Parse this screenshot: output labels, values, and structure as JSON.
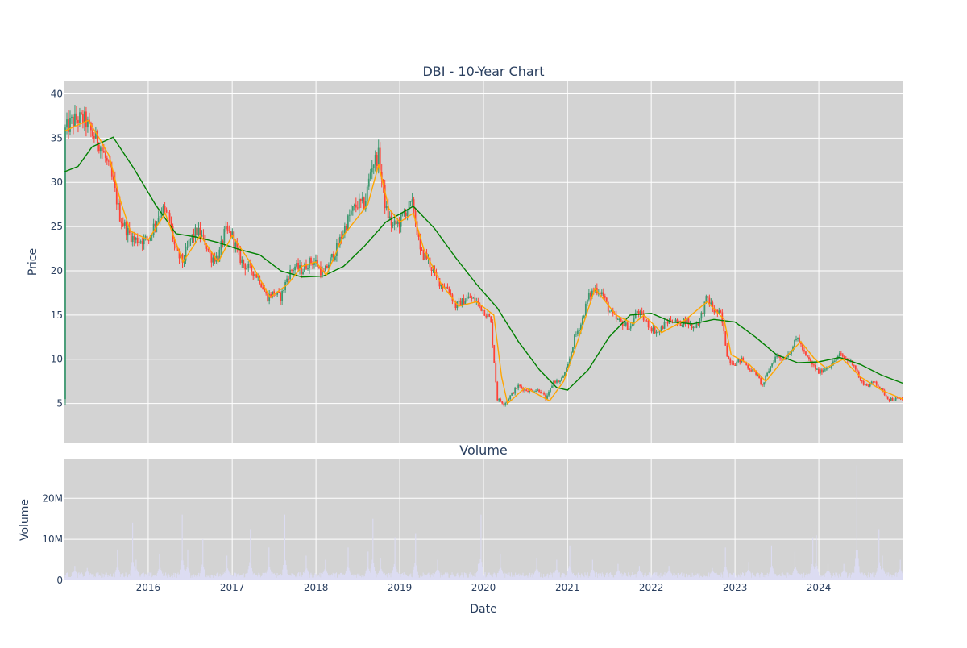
{
  "chart_data": [
    {
      "type": "candlestick",
      "title": "DBI - 10-Year Chart",
      "ylabel": "Price",
      "xlabel": "",
      "x_range": [
        "2015-01-01",
        "2024-12-31"
      ],
      "ylim": [
        0.5,
        41.5
      ],
      "y_ticks": [
        5,
        10,
        15,
        20,
        25,
        30,
        35,
        40
      ],
      "grid": true,
      "legend": "none",
      "colors": {
        "increasing": "#3d9970",
        "decreasing": "#ff4136",
        "plot_bg": "#d3d3d3",
        "grid": "#ffffff"
      },
      "price_path": [
        [
          "2015-01-02",
          35.8
        ],
        [
          "2015-02-01",
          36.8
        ],
        [
          "2015-03-01",
          37.2
        ],
        [
          "2015-04-01",
          37.0
        ],
        [
          "2015-05-01",
          35.5
        ],
        [
          "2015-06-01",
          34.5
        ],
        [
          "2015-07-01",
          32.5
        ],
        [
          "2015-08-01",
          30.0
        ],
        [
          "2015-09-01",
          26.0
        ],
        [
          "2015-10-01",
          24.5
        ],
        [
          "2015-11-01",
          23.5
        ],
        [
          "2015-12-01",
          23.5
        ],
        [
          "2016-01-01",
          23.5
        ],
        [
          "2016-02-01",
          25.5
        ],
        [
          "2016-03-01",
          27.0
        ],
        [
          "2016-04-01",
          26.0
        ],
        [
          "2016-05-01",
          22.0
        ],
        [
          "2016-06-01",
          21.0
        ],
        [
          "2016-07-01",
          23.5
        ],
        [
          "2016-08-01",
          24.5
        ],
        [
          "2016-09-01",
          23.5
        ],
        [
          "2016-10-01",
          21.5
        ],
        [
          "2016-11-01",
          21.5
        ],
        [
          "2016-12-01",
          24.5
        ],
        [
          "2017-01-01",
          24.0
        ],
        [
          "2017-02-01",
          21.5
        ],
        [
          "2017-03-01",
          20.5
        ],
        [
          "2017-04-01",
          20.0
        ],
        [
          "2017-05-01",
          19.0
        ],
        [
          "2017-06-01",
          17.0
        ],
        [
          "2017-07-01",
          17.5
        ],
        [
          "2017-08-01",
          17.0
        ],
        [
          "2017-09-01",
          19.5
        ],
        [
          "2017-10-01",
          20.5
        ],
        [
          "2017-11-01",
          20.0
        ],
        [
          "2017-12-01",
          21.0
        ],
        [
          "2018-01-01",
          21.0
        ],
        [
          "2018-02-01",
          19.5
        ],
        [
          "2018-03-01",
          21.0
        ],
        [
          "2018-04-01",
          22.5
        ],
        [
          "2018-05-01",
          24.5
        ],
        [
          "2018-06-01",
          26.5
        ],
        [
          "2018-07-01",
          27.5
        ],
        [
          "2018-08-01",
          27.5
        ],
        [
          "2018-09-01",
          32.0
        ],
        [
          "2018-10-01",
          33.0
        ],
        [
          "2018-11-01",
          27.0
        ],
        [
          "2018-12-01",
          25.0
        ],
        [
          "2019-01-01",
          25.5
        ],
        [
          "2019-02-01",
          27.0
        ],
        [
          "2019-03-01",
          27.5
        ],
        [
          "2019-04-01",
          22.0
        ],
        [
          "2019-05-01",
          21.5
        ],
        [
          "2019-06-01",
          19.5
        ],
        [
          "2019-07-01",
          18.5
        ],
        [
          "2019-08-01",
          18.0
        ],
        [
          "2019-09-01",
          16.0
        ],
        [
          "2019-10-01",
          16.5
        ],
        [
          "2019-11-01",
          17.0
        ],
        [
          "2019-12-01",
          16.5
        ],
        [
          "2020-01-01",
          15.5
        ],
        [
          "2020-02-01",
          14.5
        ],
        [
          "2020-03-01",
          5.5
        ],
        [
          "2020-04-01",
          5.0
        ],
        [
          "2020-05-01",
          6.0
        ],
        [
          "2020-06-01",
          7.0
        ],
        [
          "2020-07-01",
          6.5
        ],
        [
          "2020-08-01",
          6.5
        ],
        [
          "2020-09-01",
          6.5
        ],
        [
          "2020-10-01",
          5.5
        ],
        [
          "2020-11-01",
          7.5
        ],
        [
          "2020-12-01",
          7.5
        ],
        [
          "2021-01-01",
          9.0
        ],
        [
          "2021-02-01",
          12.5
        ],
        [
          "2021-03-01",
          14.0
        ],
        [
          "2021-04-01",
          17.0
        ],
        [
          "2021-05-01",
          18.0
        ],
        [
          "2021-06-01",
          17.5
        ],
        [
          "2021-07-01",
          15.5
        ],
        [
          "2021-08-01",
          14.5
        ],
        [
          "2021-09-01",
          14.0
        ],
        [
          "2021-10-01",
          13.5
        ],
        [
          "2021-11-01",
          15.5
        ],
        [
          "2021-12-01",
          14.5
        ],
        [
          "2022-01-01",
          13.5
        ],
        [
          "2022-02-01",
          13.0
        ],
        [
          "2022-03-01",
          14.0
        ],
        [
          "2022-04-01",
          14.5
        ],
        [
          "2022-05-01",
          14.0
        ],
        [
          "2022-06-01",
          14.5
        ],
        [
          "2022-07-01",
          13.5
        ],
        [
          "2022-08-01",
          14.5
        ],
        [
          "2022-09-01",
          17.0
        ],
        [
          "2022-10-01",
          15.5
        ],
        [
          "2022-11-01",
          15.0
        ],
        [
          "2022-12-01",
          10.0
        ],
        [
          "2023-01-01",
          9.5
        ],
        [
          "2023-02-01",
          10.0
        ],
        [
          "2023-03-01",
          9.0
        ],
        [
          "2023-04-01",
          8.5
        ],
        [
          "2023-05-01",
          7.0
        ],
        [
          "2023-06-01",
          9.0
        ],
        [
          "2023-07-01",
          10.5
        ],
        [
          "2023-08-01",
          10.0
        ],
        [
          "2023-09-01",
          11.0
        ],
        [
          "2023-10-01",
          12.5
        ],
        [
          "2023-11-01",
          10.5
        ],
        [
          "2023-12-01",
          9.5
        ],
        [
          "2024-01-01",
          8.5
        ],
        [
          "2024-02-01",
          9.0
        ],
        [
          "2024-03-01",
          9.5
        ],
        [
          "2024-04-01",
          10.5
        ],
        [
          "2024-05-01",
          10.0
        ],
        [
          "2024-06-01",
          9.5
        ],
        [
          "2024-07-01",
          7.5
        ],
        [
          "2024-08-01",
          7.0
        ],
        [
          "2024-09-01",
          7.5
        ],
        [
          "2024-10-01",
          6.5
        ],
        [
          "2024-11-01",
          5.5
        ],
        [
          "2024-12-31",
          5.5
        ]
      ],
      "ma_short": [
        [
          "2015-01-02",
          35.8
        ],
        [
          "2015-03-01",
          36.5
        ],
        [
          "2015-04-15",
          37.0
        ],
        [
          "2015-06-01",
          35.0
        ],
        [
          "2015-07-15",
          33.0
        ],
        [
          "2015-09-01",
          28.0
        ],
        [
          "2015-10-15",
          24.5
        ],
        [
          "2016-01-01",
          23.5
        ],
        [
          "2016-03-15",
          26.5
        ],
        [
          "2016-06-01",
          21.0
        ],
        [
          "2016-08-15",
          24.0
        ],
        [
          "2016-11-01",
          21.0
        ],
        [
          "2017-01-01",
          24.0
        ],
        [
          "2017-04-01",
          20.5
        ],
        [
          "2017-06-15",
          17.0
        ],
        [
          "2017-09-01",
          18.5
        ],
        [
          "2017-11-01",
          20.5
        ],
        [
          "2018-01-01",
          21.0
        ],
        [
          "2018-02-15",
          19.5
        ],
        [
          "2018-05-01",
          24.0
        ],
        [
          "2018-08-15",
          27.5
        ],
        [
          "2018-10-01",
          32.0
        ],
        [
          "2018-11-15",
          27.0
        ],
        [
          "2019-01-01",
          25.5
        ],
        [
          "2019-03-01",
          26.5
        ],
        [
          "2019-04-15",
          22.5
        ],
        [
          "2019-07-01",
          18.5
        ],
        [
          "2019-09-15",
          16.0
        ],
        [
          "2019-12-01",
          16.5
        ],
        [
          "2020-02-15",
          15.0
        ],
        [
          "2020-03-20",
          8.0
        ],
        [
          "2020-04-15",
          5.0
        ],
        [
          "2020-07-01",
          6.8
        ],
        [
          "2020-10-15",
          5.3
        ],
        [
          "2020-12-15",
          7.5
        ],
        [
          "2021-02-01",
          11.0
        ],
        [
          "2021-05-01",
          18.0
        ],
        [
          "2021-08-01",
          15.0
        ],
        [
          "2021-10-15",
          14.0
        ],
        [
          "2021-12-01",
          15.0
        ],
        [
          "2022-02-15",
          13.0
        ],
        [
          "2022-06-01",
          14.5
        ],
        [
          "2022-09-01",
          16.5
        ],
        [
          "2022-11-15",
          14.5
        ],
        [
          "2022-12-15",
          10.5
        ],
        [
          "2023-03-01",
          9.5
        ],
        [
          "2023-05-15",
          7.5
        ],
        [
          "2023-08-01",
          10.0
        ],
        [
          "2023-10-15",
          12.0
        ],
        [
          "2023-12-15",
          10.0
        ],
        [
          "2024-02-01",
          9.0
        ],
        [
          "2024-04-15",
          10.0
        ],
        [
          "2024-07-01",
          8.0
        ],
        [
          "2024-10-01",
          6.5
        ],
        [
          "2024-12-31",
          5.5
        ]
      ],
      "ma_long": [
        [
          "2015-01-02",
          31.2
        ],
        [
          "2015-03-01",
          31.8
        ],
        [
          "2015-05-01",
          34.0
        ],
        [
          "2015-08-01",
          35.1
        ],
        [
          "2015-11-01",
          31.5
        ],
        [
          "2016-02-01",
          27.5
        ],
        [
          "2016-05-01",
          24.2
        ],
        [
          "2016-08-01",
          23.8
        ],
        [
          "2016-11-01",
          23.2
        ],
        [
          "2017-02-01",
          22.4
        ],
        [
          "2017-05-01",
          21.8
        ],
        [
          "2017-08-01",
          20.0
        ],
        [
          "2017-11-01",
          19.3
        ],
        [
          "2018-02-01",
          19.4
        ],
        [
          "2018-05-01",
          20.5
        ],
        [
          "2018-08-01",
          22.8
        ],
        [
          "2018-11-01",
          25.5
        ],
        [
          "2019-03-01",
          27.3
        ],
        [
          "2019-06-01",
          24.8
        ],
        [
          "2019-09-01",
          21.5
        ],
        [
          "2019-12-01",
          18.5
        ],
        [
          "2020-03-01",
          15.8
        ],
        [
          "2020-06-01",
          12.0
        ],
        [
          "2020-09-01",
          8.8
        ],
        [
          "2020-11-15",
          6.8
        ],
        [
          "2021-01-01",
          6.5
        ],
        [
          "2021-04-01",
          8.8
        ],
        [
          "2021-07-01",
          12.5
        ],
        [
          "2021-10-01",
          15.0
        ],
        [
          "2022-01-01",
          15.2
        ],
        [
          "2022-04-01",
          14.2
        ],
        [
          "2022-07-01",
          14.0
        ],
        [
          "2022-10-01",
          14.5
        ],
        [
          "2023-01-01",
          14.2
        ],
        [
          "2023-04-01",
          12.5
        ],
        [
          "2023-07-01",
          10.5
        ],
        [
          "2023-10-01",
          9.6
        ],
        [
          "2024-01-01",
          9.7
        ],
        [
          "2024-04-01",
          10.2
        ],
        [
          "2024-07-01",
          9.4
        ],
        [
          "2024-10-01",
          8.2
        ],
        [
          "2024-12-31",
          7.3
        ]
      ],
      "colors_lines": {
        "ma_short": "#ffa500",
        "ma_long": "#008000"
      }
    },
    {
      "type": "bar",
      "title": "Volume",
      "ylabel": "Volume",
      "xlabel": "Date",
      "ylim": [
        0,
        29500000
      ],
      "y_ticks": [
        0,
        10000000,
        20000000
      ],
      "y_tick_labels": [
        "0",
        "10M",
        "20M"
      ],
      "x_ticks": [
        "2016-01-01",
        "2017-01-01",
        "2018-01-01",
        "2019-01-01",
        "2020-01-01",
        "2021-01-01",
        "2022-01-01",
        "2023-01-01",
        "2024-01-01"
      ],
      "x_tick_labels": [
        "2016",
        "2017",
        "2018",
        "2019",
        "2020",
        "2021",
        "2022",
        "2023",
        "2024"
      ],
      "grid": true,
      "colors": {
        "bar": "#dcdcf2",
        "plot_bg": "#d3d3d3"
      },
      "base_volume": 1500000,
      "spikes": [
        [
          "2015-02-15",
          3500000
        ],
        [
          "2015-04-10",
          3000000
        ],
        [
          "2015-08-20",
          7500000
        ],
        [
          "2015-10-25",
          14000000
        ],
        [
          "2015-11-10",
          5000000
        ],
        [
          "2016-02-20",
          6500000
        ],
        [
          "2016-05-28",
          16000000
        ],
        [
          "2016-06-20",
          7500000
        ],
        [
          "2016-08-25",
          10000000
        ],
        [
          "2016-12-10",
          6000000
        ],
        [
          "2017-03-20",
          12500000
        ],
        [
          "2017-06-10",
          8000000
        ],
        [
          "2017-08-18",
          16000000
        ],
        [
          "2017-11-20",
          6000000
        ],
        [
          "2018-02-10",
          5000000
        ],
        [
          "2018-05-20",
          8000000
        ],
        [
          "2018-08-15",
          7000000
        ],
        [
          "2018-09-05",
          15000000
        ],
        [
          "2018-10-10",
          5500000
        ],
        [
          "2018-12-10",
          10500000
        ],
        [
          "2019-03-10",
          11500000
        ],
        [
          "2019-06-15",
          5000000
        ],
        [
          "2019-12-10",
          4000000
        ],
        [
          "2019-12-20",
          16000000
        ],
        [
          "2020-03-15",
          6500000
        ],
        [
          "2020-08-20",
          5500000
        ],
        [
          "2020-11-15",
          5000000
        ],
        [
          "2021-01-10",
          8500000
        ],
        [
          "2021-04-20",
          5000000
        ],
        [
          "2021-08-10",
          4000000
        ],
        [
          "2021-11-10",
          3500000
        ],
        [
          "2022-03-20",
          3500000
        ],
        [
          "2022-09-25",
          3000000
        ],
        [
          "2022-11-20",
          8000000
        ],
        [
          "2023-03-01",
          4500000
        ],
        [
          "2023-06-10",
          8500000
        ],
        [
          "2023-09-20",
          7000000
        ],
        [
          "2023-12-05",
          10500000
        ],
        [
          "2023-12-20",
          11000000
        ],
        [
          "2024-02-10",
          4000000
        ],
        [
          "2024-04-20",
          4000000
        ],
        [
          "2024-06-15",
          28000000
        ],
        [
          "2024-09-20",
          12500000
        ],
        [
          "2024-10-05",
          6000000
        ],
        [
          "2024-12-20",
          5000000
        ]
      ]
    }
  ]
}
